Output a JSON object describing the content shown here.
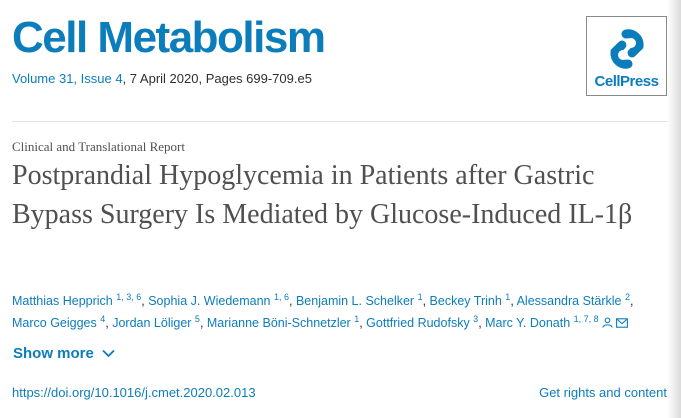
{
  "journal": {
    "title": "Cell Metabolism",
    "volume_issue": "Volume 31, Issue 4",
    "date_pages": ", 7 April 2020, Pages 699-709.e5",
    "publisher_logo_text": "CellPress"
  },
  "article": {
    "type": "Clinical and Translational Report",
    "title": "Postprandial Hypoglycemia in Patients after Gastric Bypass Surgery Is Mediated by Glucose-Induced IL-1β"
  },
  "authors": [
    {
      "name": "Matthias Hepprich",
      "affil": "1, 3, 6"
    },
    {
      "name": "Sophia J. Wiedemann",
      "affil": "1, 6"
    },
    {
      "name": "Benjamin L. Schelker",
      "affil": "1"
    },
    {
      "name": "Beckey Trinh",
      "affil": "1"
    },
    {
      "name": "Alessandra Stärkle",
      "affil": "2"
    },
    {
      "name": "Marco Geigges",
      "affil": "4"
    },
    {
      "name": "Jordan Löliger",
      "affil": "5"
    },
    {
      "name": "Marianne Böni-Schnetzler",
      "affil": "1"
    },
    {
      "name": "Gottfried Rudofsky",
      "affil": "3"
    },
    {
      "name": "Marc Y. Donath",
      "affil": "1, 7, 8"
    }
  ],
  "actions": {
    "show_more": "Show more",
    "doi": "https://doi.org/10.1016/j.cmet.2020.02.013",
    "rights": "Get rights and content"
  },
  "icons": {
    "corresponding_author": "person-icon",
    "email": "envelope-icon",
    "show_more": "chevron-down-icon"
  },
  "colors": {
    "brand_blue": "#0c7dbb",
    "title_gray": "#505050",
    "text_dark": "#2e2e2e"
  }
}
